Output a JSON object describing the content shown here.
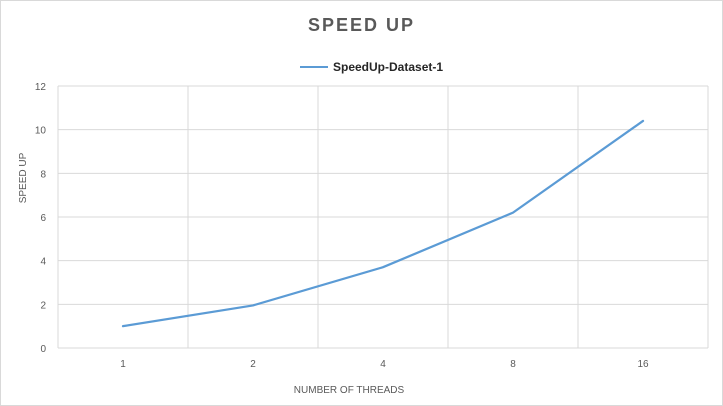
{
  "chart_data": {
    "type": "line",
    "title": "SPEED UP",
    "xlabel": "NUMBER OF THREADS",
    "ylabel": "SPEED UP",
    "categories": [
      "1",
      "2",
      "4",
      "8",
      "16"
    ],
    "series": [
      {
        "name": "SpeedUp-Dataset-1",
        "values": [
          1.0,
          1.95,
          3.7,
          6.2,
          10.4
        ],
        "color": "#5b9bd5"
      }
    ],
    "ylim": [
      0,
      12
    ],
    "yticks": [
      "0",
      "2",
      "4",
      "6",
      "8",
      "10",
      "12"
    ],
    "grid": true,
    "legend_position": "top"
  }
}
